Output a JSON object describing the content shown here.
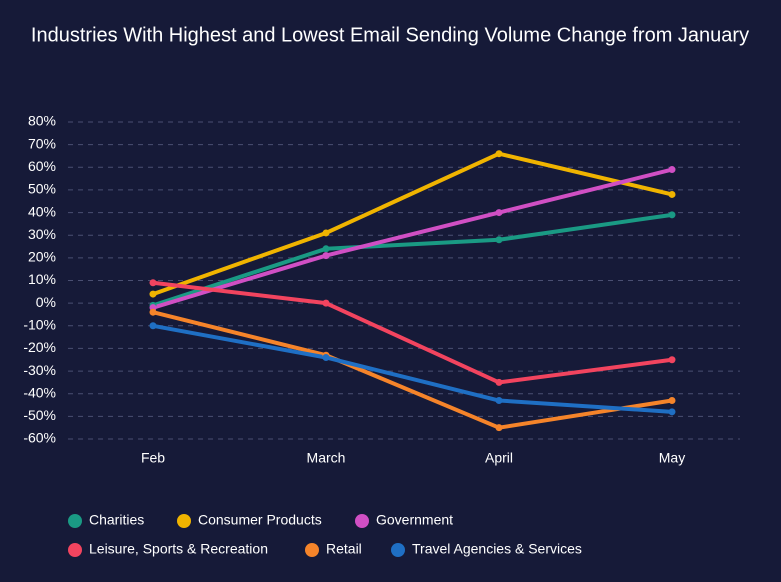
{
  "chart_data": {
    "type": "line",
    "title": "Industries With Highest and Lowest Email Sending Volume Change from January",
    "categories": [
      "Feb",
      "March",
      "April",
      "May"
    ],
    "ylim": [
      -60,
      80
    ],
    "yticks": [
      {
        "value": -60,
        "label": "-60%"
      },
      {
        "value": -50,
        "label": "-50%"
      },
      {
        "value": -40,
        "label": "-40%"
      },
      {
        "value": -30,
        "label": "-30%"
      },
      {
        "value": -20,
        "label": "-20%"
      },
      {
        "value": -10,
        "label": "-10%"
      },
      {
        "value": 0,
        "label": "0%"
      },
      {
        "value": 10,
        "label": "10%"
      },
      {
        "value": 20,
        "label": "20%"
      },
      {
        "value": 30,
        "label": "30%"
      },
      {
        "value": 40,
        "label": "40%"
      },
      {
        "value": 50,
        "label": "50%"
      },
      {
        "value": 60,
        "label": "60%"
      },
      {
        "value": 70,
        "label": "70%"
      },
      {
        "value": 80,
        "label": "80%"
      }
    ],
    "grid": true,
    "legend": "bottom",
    "series": [
      {
        "name": "Charities",
        "color": "#1a9a84",
        "values": [
          -1,
          24,
          28,
          39
        ]
      },
      {
        "name": "Consumer Products",
        "color": "#f0b400",
        "values": [
          4,
          31,
          66,
          48
        ]
      },
      {
        "name": "Government",
        "color": "#d04fc4",
        "values": [
          -2,
          21,
          40,
          59
        ]
      },
      {
        "name": "Leisure, Sports & Recreation",
        "color": "#f2445f",
        "values": [
          9,
          0,
          -35,
          -25
        ]
      },
      {
        "name": "Retail",
        "color": "#f5842a",
        "values": [
          -4,
          -23,
          -55,
          -43
        ]
      },
      {
        "name": "Travel Agencies & Services",
        "color": "#1f6fc4",
        "values": [
          -10,
          -24,
          -43,
          -48
        ]
      }
    ]
  }
}
